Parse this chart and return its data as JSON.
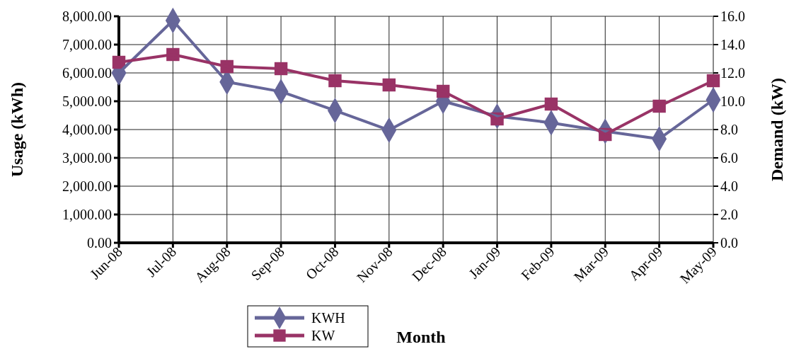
{
  "chart_data": {
    "type": "line",
    "xlabel": "Month",
    "ylabel": "Usage (kWh)",
    "y2label": "Demand (kW)",
    "categories": [
      "Jun-08",
      "Jul-08",
      "Aug-08",
      "Sep-08",
      "Oct-08",
      "Nov-08",
      "Dec-08",
      "Jan-09",
      "Feb-09",
      "Mar-09",
      "Apr-09",
      "May-09"
    ],
    "series": [
      {
        "name": "KWH",
        "color": "#666699",
        "marker": "diamond",
        "values": [
          6000,
          7850,
          5680,
          5340,
          4670,
          3980,
          5000,
          4470,
          4240,
          3940,
          3670,
          5050
        ]
      },
      {
        "name": "KW",
        "color": "#993366",
        "marker": "square",
        "axis": "y2",
        "values": [
          12.75,
          13.3,
          12.45,
          12.3,
          11.45,
          11.15,
          10.7,
          8.75,
          9.8,
          7.65,
          9.65,
          11.45
        ]
      }
    ],
    "ylim": [
      0,
      8000
    ],
    "yticks": [
      {
        "value": 0,
        "label": "0.00"
      },
      {
        "value": 1000,
        "label": "1,000.00"
      },
      {
        "value": 2000,
        "label": "2,000.00"
      },
      {
        "value": 3000,
        "label": "3,000.00"
      },
      {
        "value": 4000,
        "label": "4,000.00"
      },
      {
        "value": 5000,
        "label": "5,000.00"
      },
      {
        "value": 6000,
        "label": "6,000.00"
      },
      {
        "value": 7000,
        "label": "7,000.00"
      },
      {
        "value": 8000,
        "label": "8,000.00"
      }
    ],
    "y2lim": [
      0,
      16
    ],
    "y2ticks": [
      {
        "value": 0,
        "label": "0.0"
      },
      {
        "value": 2,
        "label": "2.0"
      },
      {
        "value": 4,
        "label": "4.0"
      },
      {
        "value": 6,
        "label": "6.0"
      },
      {
        "value": 8,
        "label": "8.0"
      },
      {
        "value": 10,
        "label": "10.0"
      },
      {
        "value": 12,
        "label": "12.0"
      },
      {
        "value": 14,
        "label": "14.0"
      },
      {
        "value": 16,
        "label": "16.0"
      }
    ],
    "grid": true,
    "legend": "bottom",
    "line_style": "solid"
  }
}
